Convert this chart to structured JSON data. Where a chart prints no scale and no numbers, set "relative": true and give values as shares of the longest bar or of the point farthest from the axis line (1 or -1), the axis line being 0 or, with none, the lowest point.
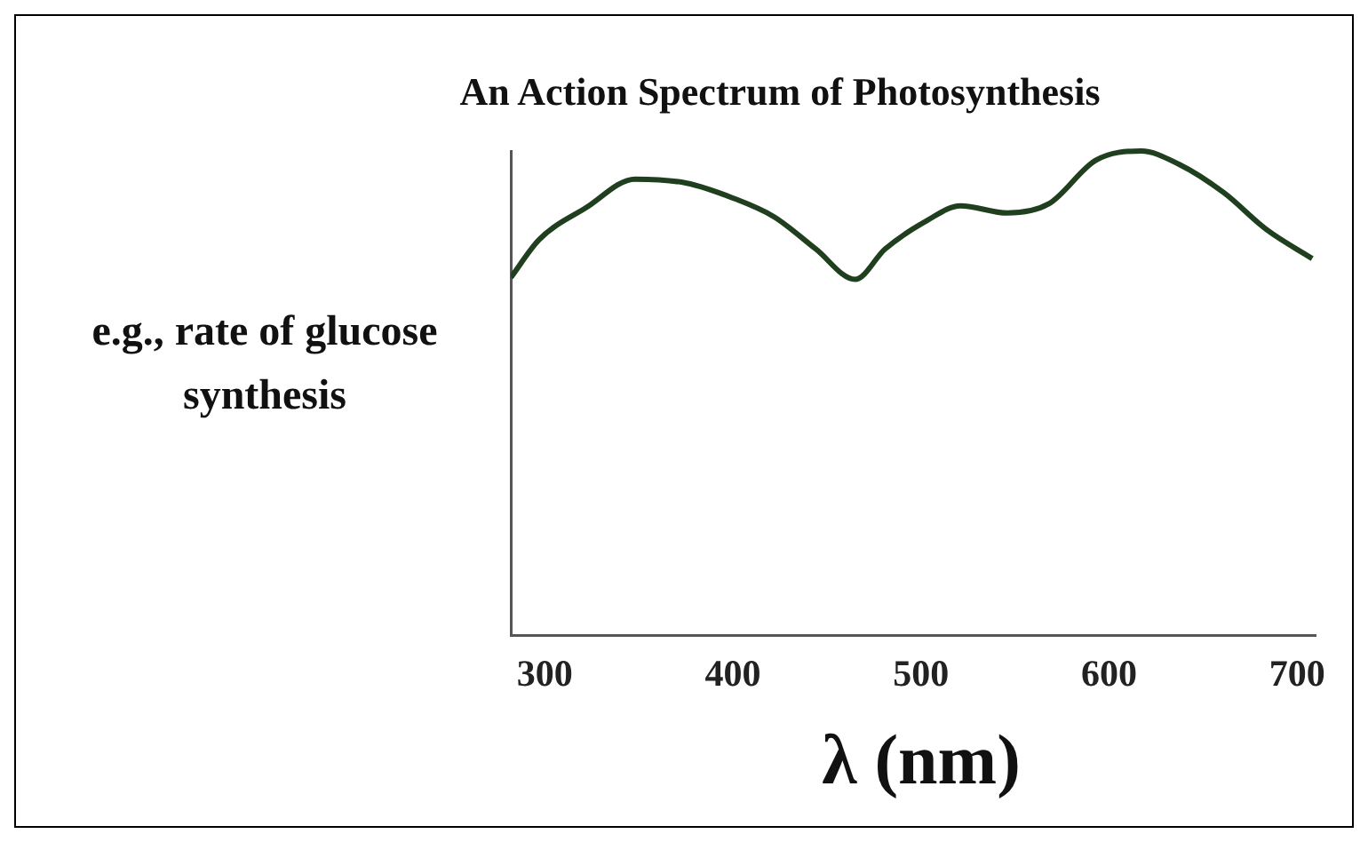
{
  "chart_data": {
    "type": "line",
    "title": "An Action Spectrum of Photosynthesis",
    "xlabel": "λ (nm)",
    "ylabel": "e.g., rate of glucose synthesis",
    "relative": true,
    "x": [
      282,
      297,
      322,
      348,
      375,
      400,
      422,
      444,
      465,
      481,
      503,
      521,
      546,
      568,
      593,
      617,
      637,
      661,
      684,
      708
    ],
    "series": [
      {
        "color": "#1f3f1f",
        "values": [
          0.739,
          0.817,
          0.883,
          0.942,
          0.934,
          0.903,
          0.864,
          0.798,
          0.735,
          0.798,
          0.856,
          0.887,
          0.872,
          0.891,
          0.981,
          1.0,
          0.973,
          0.914,
          0.837,
          0.778
        ]
      }
    ],
    "xlim": [
      282,
      710
    ],
    "xticks": [
      300,
      400,
      500,
      600,
      700
    ],
    "grid": false,
    "legend": false
  }
}
